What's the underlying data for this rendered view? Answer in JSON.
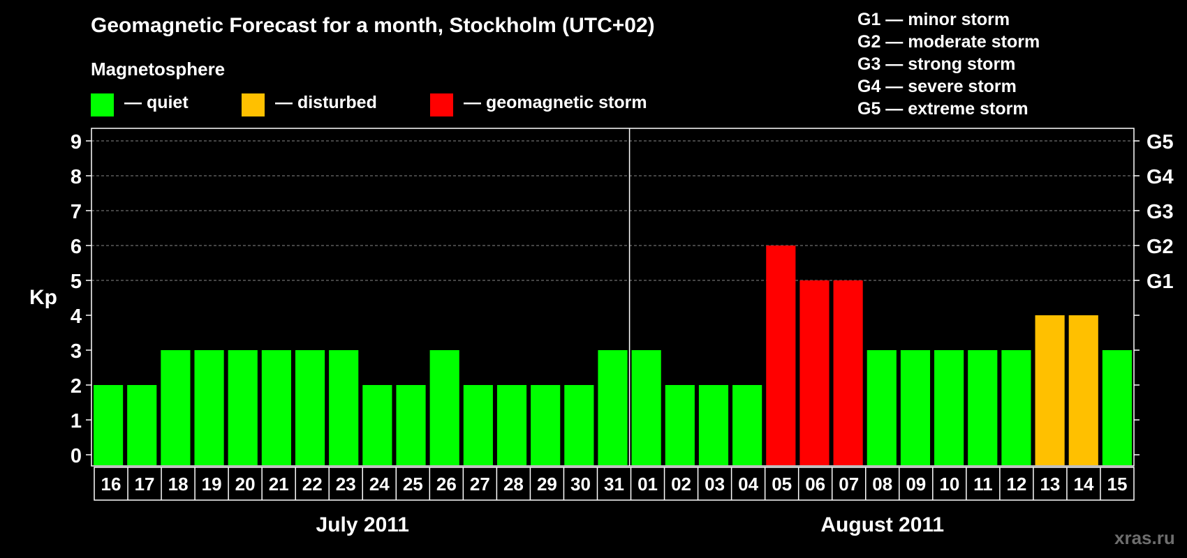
{
  "chart_data": {
    "type": "bar",
    "title": "Geomagnetic Forecast for a month, Stockholm (UTC+02)",
    "legend_title": "Magnetosphere",
    "legend": [
      {
        "label": "— quiet",
        "color": "#00ff00"
      },
      {
        "label": "— disturbed",
        "color": "#ffc000"
      },
      {
        "label": "— geomagnetic storm",
        "color": "#ff0000"
      }
    ],
    "storm_scale": [
      "G1 — minor storm",
      "G2 — moderate storm",
      "G3 — strong storm",
      "G4 — severe storm",
      "G5 — extreme storm"
    ],
    "ylabel": "Kp",
    "ylim": [
      0,
      9
    ],
    "yticks": [
      "0",
      "1",
      "2",
      "3",
      "4",
      "5",
      "6",
      "7",
      "8",
      "9"
    ],
    "right_ticks": [
      {
        "value": 5,
        "label": "G1"
      },
      {
        "value": 6,
        "label": "G2"
      },
      {
        "value": 7,
        "label": "G3"
      },
      {
        "value": 8,
        "label": "G4"
      },
      {
        "value": 9,
        "label": "G5"
      }
    ],
    "categories": [
      "16",
      "17",
      "18",
      "19",
      "20",
      "21",
      "22",
      "23",
      "24",
      "25",
      "26",
      "27",
      "28",
      "29",
      "30",
      "31",
      "01",
      "02",
      "03",
      "04",
      "05",
      "06",
      "07",
      "08",
      "09",
      "10",
      "11",
      "12",
      "13",
      "14",
      "15"
    ],
    "values": [
      2,
      2,
      3,
      3,
      3,
      3,
      3,
      3,
      2,
      2,
      3,
      2,
      2,
      2,
      2,
      3,
      3,
      2,
      2,
      2,
      6,
      5,
      5,
      3,
      3,
      3,
      3,
      3,
      4,
      4,
      3
    ],
    "levels": [
      "quiet",
      "quiet",
      "quiet",
      "quiet",
      "quiet",
      "quiet",
      "quiet",
      "quiet",
      "quiet",
      "quiet",
      "quiet",
      "quiet",
      "quiet",
      "quiet",
      "quiet",
      "quiet",
      "quiet",
      "quiet",
      "quiet",
      "quiet",
      "storm",
      "storm",
      "storm",
      "quiet",
      "quiet",
      "quiet",
      "quiet",
      "quiet",
      "disturbed",
      "disturbed",
      "quiet"
    ],
    "level_colors": {
      "quiet": "#00ff00",
      "disturbed": "#ffc000",
      "storm": "#ff0000"
    },
    "months": [
      "July 2011",
      "August 2011"
    ],
    "month_split_index": 16,
    "grid": true
  },
  "watermark": "xras.ru"
}
